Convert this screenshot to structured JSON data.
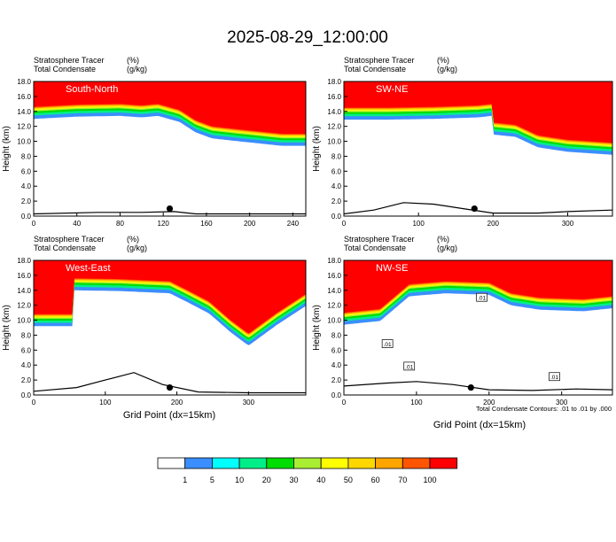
{
  "figure": {
    "title": "2025-08-29_12:00:00",
    "contour_note": "Total Condensate Contours: .01 to .01 by .000"
  },
  "colorbar": {
    "colors": [
      "#ffffff",
      "#3b8eff",
      "#00ffff",
      "#00ee88",
      "#00dd00",
      "#aaee33",
      "#ffff00",
      "#ffd700",
      "#ffa500",
      "#ff5500",
      "#ff0000"
    ],
    "labels": [
      "1",
      "5",
      "10",
      "20",
      "30",
      "40",
      "50",
      "60",
      "70",
      "100"
    ]
  },
  "chart_data": [
    {
      "type": "heatmap",
      "panel_label": "South-North",
      "header_left": [
        "Stratosphere Tracer",
        "Total Condensate"
      ],
      "header_units": [
        "(%)",
        "(g/kg)"
      ],
      "ylabel": "Height (km)",
      "xlabel": "",
      "ylim": [
        0,
        18
      ],
      "yticks": [
        "0.0",
        "2.0",
        "4.0",
        "6.0",
        "8.0",
        "10.0",
        "12.0",
        "14.0",
        "16.0",
        "18.0"
      ],
      "xlim": [
        0,
        252
      ],
      "xticks": [
        0,
        40,
        80,
        120,
        160,
        200,
        240
      ],
      "tropopause_height_km": [
        [
          0,
          14.6
        ],
        [
          40,
          14.9
        ],
        [
          80,
          15.0
        ],
        [
          100,
          14.8
        ],
        [
          115,
          15.0
        ],
        [
          135,
          14.2
        ],
        [
          150,
          12.8
        ],
        [
          165,
          12.0
        ],
        [
          190,
          11.6
        ],
        [
          210,
          11.3
        ],
        [
          230,
          11.0
        ],
        [
          252,
          11.0
        ]
      ],
      "terrain_height_km": [
        [
          0,
          0.3
        ],
        [
          60,
          0.5
        ],
        [
          100,
          0.5
        ],
        [
          130,
          0.6
        ],
        [
          150,
          0.3
        ],
        [
          252,
          0.3
        ]
      ],
      "marker": {
        "x": 126,
        "y_km": 1.0
      }
    },
    {
      "type": "heatmap",
      "panel_label": "SW-NE",
      "header_left": [
        "Stratosphere Tracer",
        "Total Condensate"
      ],
      "header_units": [
        "(%)",
        "(g/kg)"
      ],
      "ylabel": "Height (km)",
      "xlabel": "",
      "ylim": [
        0,
        18
      ],
      "yticks": [
        "0.0",
        "2.0",
        "4.0",
        "6.0",
        "8.0",
        "10.0",
        "12.0",
        "14.0",
        "16.0",
        "18.0"
      ],
      "xlim": [
        0,
        360
      ],
      "xticks": [
        0,
        100,
        200,
        300
      ],
      "tropopause_height_km": [
        [
          0,
          14.5
        ],
        [
          60,
          14.5
        ],
        [
          120,
          14.6
        ],
        [
          180,
          14.8
        ],
        [
          198,
          15.0
        ],
        [
          200,
          12.5
        ],
        [
          230,
          12.2
        ],
        [
          260,
          10.8
        ],
        [
          300,
          10.2
        ],
        [
          330,
          10.0
        ],
        [
          360,
          9.8
        ]
      ],
      "terrain_height_km": [
        [
          0,
          0.3
        ],
        [
          40,
          0.8
        ],
        [
          80,
          1.8
        ],
        [
          120,
          1.6
        ],
        [
          160,
          1.0
        ],
        [
          200,
          0.4
        ],
        [
          260,
          0.4
        ],
        [
          300,
          0.6
        ],
        [
          360,
          0.8
        ]
      ],
      "marker": {
        "x": 175,
        "y_km": 1.0
      }
    },
    {
      "type": "heatmap",
      "panel_label": "West-East",
      "header_left": [
        "Stratosphere Tracer",
        "Total Condensate"
      ],
      "header_units": [
        "(%)",
        "(g/kg)"
      ],
      "ylabel": "Height (km)",
      "xlabel": "Grid Point (dx=15km)",
      "ylim": [
        0,
        18
      ],
      "yticks": [
        "0.0",
        "2.0",
        "4.0",
        "6.0",
        "8.0",
        "10.0",
        "12.0",
        "14.0",
        "16.0",
        "18.0"
      ],
      "xlim": [
        0,
        380
      ],
      "xticks": [
        0,
        100,
        200,
        300
      ],
      "tropopause_height_km": [
        [
          0,
          10.8
        ],
        [
          55,
          10.8
        ],
        [
          56,
          15.6
        ],
        [
          120,
          15.5
        ],
        [
          190,
          15.2
        ],
        [
          215,
          14.0
        ],
        [
          245,
          12.5
        ],
        [
          275,
          10.0
        ],
        [
          300,
          8.2
        ],
        [
          340,
          11.0
        ],
        [
          380,
          13.5
        ]
      ],
      "terrain_height_km": [
        [
          0,
          0.5
        ],
        [
          60,
          1.0
        ],
        [
          100,
          2.0
        ],
        [
          140,
          3.0
        ],
        [
          180,
          1.4
        ],
        [
          230,
          0.4
        ],
        [
          300,
          0.3
        ],
        [
          380,
          0.3
        ]
      ],
      "marker": {
        "x": 190,
        "y_km": 1.0
      }
    },
    {
      "type": "heatmap",
      "panel_label": "NW-SE",
      "header_left": [
        "Stratosphere Tracer",
        "Total Condensate"
      ],
      "header_units": [
        "(%)",
        "(g/kg)"
      ],
      "ylabel": "Height (km)",
      "xlabel": "Grid Point (dx=15km)",
      "ylim": [
        0,
        18
      ],
      "yticks": [
        "0.0",
        "2.0",
        "4.0",
        "6.0",
        "8.0",
        "10.0",
        "12.0",
        "14.0",
        "16.0",
        "18.0"
      ],
      "xlim": [
        0,
        370
      ],
      "xticks": [
        0,
        100,
        200,
        300
      ],
      "tropopause_height_km": [
        [
          0,
          11.0
        ],
        [
          50,
          11.5
        ],
        [
          90,
          14.8
        ],
        [
          140,
          15.2
        ],
        [
          200,
          15.0
        ],
        [
          230,
          13.6
        ],
        [
          270,
          13.0
        ],
        [
          330,
          12.8
        ],
        [
          370,
          13.2
        ]
      ],
      "terrain_height_km": [
        [
          0,
          1.2
        ],
        [
          60,
          1.6
        ],
        [
          100,
          1.8
        ],
        [
          150,
          1.4
        ],
        [
          200,
          0.7
        ],
        [
          260,
          0.6
        ],
        [
          320,
          0.8
        ],
        [
          370,
          0.7
        ]
      ],
      "marker": {
        "x": 175,
        "y_km": 1.0
      },
      "contour_labels": [
        ".01",
        ".01",
        ".01",
        ".01"
      ]
    }
  ]
}
